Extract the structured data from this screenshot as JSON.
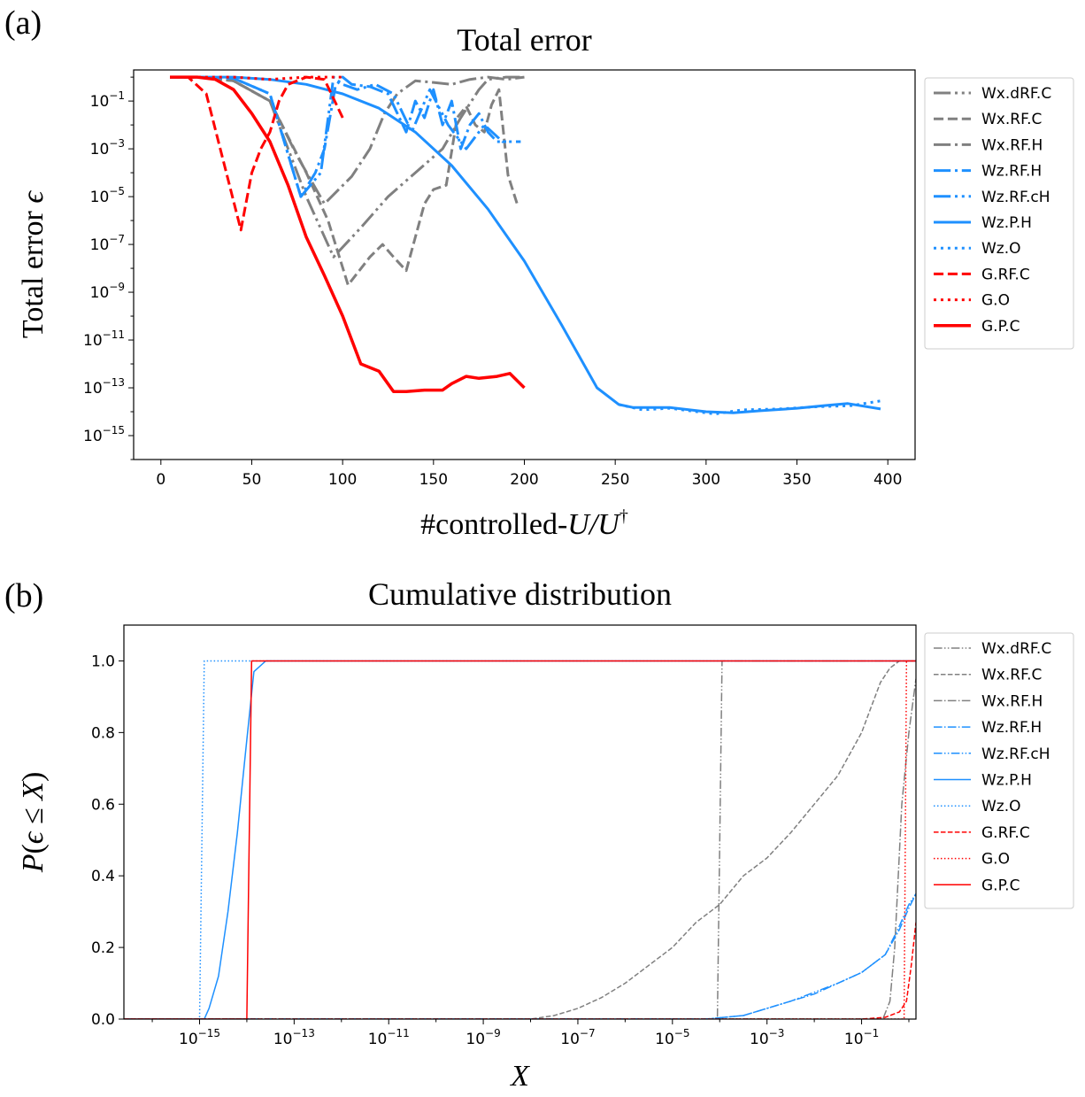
{
  "colors": {
    "red": "#ff0000",
    "blue": "#1e90ff",
    "gray": "#808080"
  },
  "panels": [
    "(a)",
    "(b)"
  ],
  "chart_data": [
    {
      "type": "line",
      "title": "Total error",
      "xlabel": "#controlled-U/U†",
      "ylabel": "Total error ϵ",
      "yscale": "log",
      "xlim": [
        -15,
        415
      ],
      "ylim": [
        1e-16,
        2
      ],
      "xticks": [
        0,
        50,
        100,
        150,
        200,
        250,
        300,
        350,
        400
      ],
      "yticks": [
        -15,
        -13,
        -11,
        -9,
        -7,
        -5,
        -3,
        -1
      ],
      "legend_position": "outside-right",
      "series": [
        {
          "name": "Wx.dRF.C",
          "color": "#808080",
          "dash": "dashdotdot",
          "width": 3,
          "x": [
            5,
            20,
            40,
            60,
            80,
            95,
            110,
            125,
            140,
            155,
            165,
            175,
            180,
            190,
            198
          ],
          "y": [
            1,
            1,
            0.7,
            0.1,
            1e-05,
            3e-08,
            5e-07,
            1e-05,
            0.0001,
            0.001,
            0.02,
            0.3,
            0.8,
            1,
            1
          ]
        },
        {
          "name": "Wx.RF.C",
          "color": "#808080",
          "dash": "dashed",
          "width": 3,
          "x": [
            5,
            20,
            40,
            60,
            80,
            92,
            103,
            115,
            122,
            128,
            135,
            145,
            150,
            157,
            163,
            168,
            173,
            178,
            182,
            186,
            191,
            196
          ],
          "y": [
            1,
            1,
            0.7,
            0.1,
            0.0001,
            1e-06,
            2e-09,
            3e-08,
            1e-07,
            3e-08,
            8e-09,
            5e-06,
            2e-05,
            3e-05,
            0.02,
            0.06,
            0.01,
            0.005,
            0.07,
            0.3,
            8e-05,
            5e-06
          ]
        },
        {
          "name": "Wx.RF.H",
          "color": "#808080",
          "dash": "dashdot",
          "width": 3,
          "x": [
            5,
            20,
            40,
            60,
            75,
            90,
            105,
            115,
            123,
            130,
            140,
            150,
            160,
            170,
            180,
            190,
            200
          ],
          "y": [
            1,
            1,
            0.7,
            0.1,
            0.0005,
            5e-06,
            7e-05,
            0.001,
            0.03,
            0.2,
            0.7,
            0.6,
            0.5,
            0.8,
            1,
            0.8,
            1
          ]
        },
        {
          "name": "Wz.RF.H",
          "color": "#1e90ff",
          "dash": "dashdot",
          "width": 3,
          "x": [
            5,
            20,
            40,
            60,
            77,
            85,
            90,
            96,
            100,
            105,
            115,
            125,
            135,
            140,
            145,
            150,
            155,
            160,
            165,
            170,
            175,
            180,
            185,
            190
          ],
          "y": [
            1,
            1,
            0.9,
            0.2,
            1e-05,
            0.0001,
            0.001,
            0.4,
            1,
            0.5,
            0.4,
            0.2,
            0.005,
            0.1,
            0.02,
            0.3,
            0.01,
            0.1,
            0.001,
            0.01,
            0.03,
            0.005,
            0.002,
            0.002
          ]
        },
        {
          "name": "Wz.RF.cH",
          "color": "#1e90ff",
          "dash": "dashdotdot",
          "width": 3,
          "x": [
            5,
            20,
            40,
            60,
            77,
            88,
            95,
            100,
            108,
            118,
            128,
            138,
            148,
            158,
            168,
            178,
            188,
            198
          ],
          "y": [
            1,
            1,
            0.9,
            0.2,
            1e-05,
            0.0001,
            1,
            0.5,
            0.3,
            0.5,
            0.2,
            0.005,
            0.3,
            0.01,
            0.001,
            0.01,
            0.002,
            0.002
          ]
        },
        {
          "name": "Wz.P.H",
          "color": "#1e90ff",
          "dash": "solid",
          "width": 3,
          "x": [
            5,
            20,
            40,
            60,
            80,
            100,
            120,
            140,
            160,
            180,
            200,
            220,
            240,
            252,
            260,
            280,
            300,
            315,
            330,
            350,
            365,
            378,
            396
          ],
          "y": [
            1,
            1,
            1,
            0.8,
            0.5,
            0.2,
            0.05,
            0.005,
            0.0002,
            3e-06,
            2e-08,
            5e-11,
            1e-13,
            2e-14,
            1.5e-14,
            1.5e-14,
            1e-14,
            9e-15,
            1.1e-14,
            1.4e-14,
            1.8e-14,
            2.2e-14,
            1.3e-14
          ]
        },
        {
          "name": "Wz.O",
          "color": "#1e90ff",
          "dash": "dotted",
          "width": 3,
          "x": [
            252,
            265,
            280,
            295,
            305,
            320,
            340,
            360,
            380,
            398
          ],
          "y": [
            2e-14,
            1.2e-14,
            1.4e-14,
            1e-14,
            8e-15,
            1.2e-14,
            1.3e-14,
            1.6e-14,
            1.8e-14,
            3e-14
          ]
        },
        {
          "name": "G.RF.C",
          "color": "#ff0000",
          "dash": "dashed",
          "width": 3,
          "x": [
            5,
            15,
            25,
            35,
            44,
            50,
            55,
            60,
            65,
            70,
            80,
            90,
            100
          ],
          "y": [
            1,
            1,
            0.2,
            0.0002,
            4e-07,
            0.0001,
            0.001,
            0.005,
            0.1,
            0.5,
            1,
            0.8,
            0.02
          ]
        },
        {
          "name": "G.O",
          "color": "#ff0000",
          "dash": "dotted",
          "width": 3,
          "x": [
            5,
            20,
            40,
            60,
            70,
            80,
            90,
            100
          ],
          "y": [
            1,
            1,
            1,
            0.8,
            0.9,
            1,
            1,
            1
          ]
        },
        {
          "name": "G.P.C",
          "color": "#ff0000",
          "dash": "solid",
          "width": 3.5,
          "x": [
            5,
            20,
            30,
            40,
            50,
            60,
            70,
            80,
            90,
            100,
            110,
            120,
            128,
            135,
            145,
            155,
            160,
            168,
            175,
            185,
            192,
            200
          ],
          "y": [
            1,
            1,
            0.8,
            0.3,
            0.03,
            0.002,
            3e-05,
            2e-07,
            5e-09,
            1e-10,
            1e-12,
            5e-13,
            7e-14,
            7e-14,
            8e-14,
            8e-14,
            1.5e-13,
            3e-13,
            2.5e-13,
            3e-13,
            4e-13,
            1e-13
          ]
        }
      ]
    },
    {
      "type": "line",
      "title": "Cumulative distribution",
      "xlabel": "X",
      "ylabel": "P(ϵ ≤ X)",
      "xscale": "log",
      "xlim": [
        -16.6,
        0.15
      ],
      "ylim": [
        0,
        1.1
      ],
      "xticks": [
        -15,
        -13,
        -11,
        -9,
        -7,
        -5,
        -3,
        -1
      ],
      "yticks": [
        "0.0",
        "0.2",
        "0.4",
        "0.6",
        "0.8",
        "1.0"
      ],
      "legend_position": "outside-right",
      "series": [
        {
          "name": "Wx.dRF.C",
          "color": "#808080",
          "dash": "dashdotdot",
          "width": 1.5,
          "x": [
            -16.6,
            -4.05,
            -4.0,
            -3.95,
            0.15
          ],
          "y": [
            0,
            0,
            0.5,
            1,
            1
          ]
        },
        {
          "name": "Wx.RF.C",
          "color": "#808080",
          "dash": "dashed",
          "width": 1.5,
          "x": [
            -16.6,
            -8.0,
            -7.5,
            -7.0,
            -6.5,
            -6.0,
            -5.5,
            -5.0,
            -4.5,
            -4.0,
            -3.5,
            -3.0,
            -2.5,
            -2.0,
            -1.5,
            -1.0,
            -0.8,
            -0.6,
            -0.4,
            -0.2,
            -0.1,
            0.15
          ],
          "y": [
            0,
            0,
            0.01,
            0.03,
            0.06,
            0.1,
            0.15,
            0.2,
            0.27,
            0.32,
            0.4,
            0.45,
            0.52,
            0.6,
            0.68,
            0.8,
            0.87,
            0.94,
            0.98,
            1,
            1,
            1
          ]
        },
        {
          "name": "Wx.RF.H",
          "color": "#808080",
          "dash": "dashdot",
          "width": 1.5,
          "x": [
            -16.6,
            -0.55,
            -0.4,
            -0.3,
            -0.15,
            0,
            0.15
          ],
          "y": [
            0,
            0,
            0.05,
            0.2,
            0.6,
            0.8,
            0.95
          ]
        },
        {
          "name": "Wz.RF.H",
          "color": "#1e90ff",
          "dash": "dashdot",
          "width": 1.5,
          "x": [
            -16.6,
            -4.3,
            -3.5,
            -3.0,
            -2.5,
            -2.0,
            -1.5,
            -1.0,
            -0.5,
            -0.2,
            0,
            0.15
          ],
          "y": [
            0,
            0,
            0.01,
            0.03,
            0.05,
            0.07,
            0.1,
            0.13,
            0.18,
            0.25,
            0.31,
            0.35
          ]
        },
        {
          "name": "Wz.RF.cH",
          "color": "#1e90ff",
          "dash": "dashdotdot",
          "width": 1.5,
          "x": [
            -16.6,
            -4.3,
            -3.5,
            -3.0,
            -2.5,
            -2.0,
            -1.5,
            -1.0,
            -0.5,
            -0.2,
            0,
            0.15
          ],
          "y": [
            0,
            0,
            0.01,
            0.03,
            0.05,
            0.075,
            0.1,
            0.13,
            0.18,
            0.26,
            0.32,
            0.35
          ]
        },
        {
          "name": "Wz.P.H",
          "color": "#1e90ff",
          "dash": "solid",
          "width": 1.5,
          "x": [
            -16.6,
            -14.9,
            -14.8,
            -14.6,
            -14.4,
            -14.2,
            -14.0,
            -13.85,
            -13.6,
            0.15
          ],
          "y": [
            0,
            0,
            0.03,
            0.12,
            0.3,
            0.52,
            0.78,
            0.97,
            1,
            1
          ]
        },
        {
          "name": "Wz.O",
          "color": "#1e90ff",
          "dash": "dotted",
          "width": 1.5,
          "x": [
            -16.6,
            -15.0,
            -14.9,
            0.15
          ],
          "y": [
            0,
            0,
            1,
            1
          ]
        },
        {
          "name": "G.RF.C",
          "color": "#ff0000",
          "dash": "dashed",
          "width": 1.5,
          "x": [
            -16.6,
            -1.0,
            -0.5,
            -0.2,
            -0.05,
            0.05,
            0.15
          ],
          "y": [
            0,
            0,
            0.005,
            0.02,
            0.05,
            0.15,
            0.27
          ]
        },
        {
          "name": "G.O",
          "color": "#ff0000",
          "dash": "dotted",
          "width": 1.5,
          "x": [
            -16.6,
            -0.1,
            -0.05,
            0.15
          ],
          "y": [
            0,
            0,
            1,
            1
          ]
        },
        {
          "name": "G.P.C",
          "color": "#ff0000",
          "dash": "solid",
          "width": 1.5,
          "x": [
            -16.6,
            -14.0,
            -13.9,
            0.15
          ],
          "y": [
            0,
            0,
            1,
            1
          ]
        }
      ]
    }
  ]
}
